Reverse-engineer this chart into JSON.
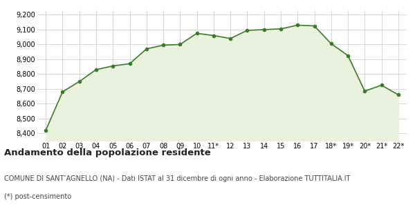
{
  "x_labels": [
    "01",
    "02",
    "03",
    "04",
    "05",
    "06",
    "07",
    "08",
    "09",
    "10",
    "11*",
    "12",
    "13",
    "14",
    "15",
    "16",
    "17",
    "18*",
    "19*",
    "20*",
    "21*",
    "22*"
  ],
  "values": [
    8420,
    8680,
    8750,
    8830,
    8855,
    8870,
    8970,
    8995,
    9000,
    9075,
    9060,
    9040,
    9095,
    9100,
    9105,
    9130,
    9125,
    9005,
    8925,
    8685,
    8725,
    8660
  ],
  "line_color": "#3a7a2a",
  "fill_color": "#eaf1dc",
  "marker_color": "#3a7a2a",
  "background_color": "#ffffff",
  "grid_color": "#d0d0d0",
  "ylim": [
    8350,
    9230
  ],
  "yticks": [
    8400,
    8500,
    8600,
    8700,
    8800,
    8900,
    9000,
    9100,
    9200
  ],
  "title": "Andamento della popolazione residente",
  "subtitle": "COMUNE DI SANT’AGNELLO (NA) - Dati ISTAT al 31 dicembre di ogni anno - Elaborazione TUTTITALIA.IT",
  "footnote": "(*) post-censimento",
  "title_fontsize": 9.5,
  "subtitle_fontsize": 7,
  "footnote_fontsize": 7,
  "tick_fontsize": 7
}
